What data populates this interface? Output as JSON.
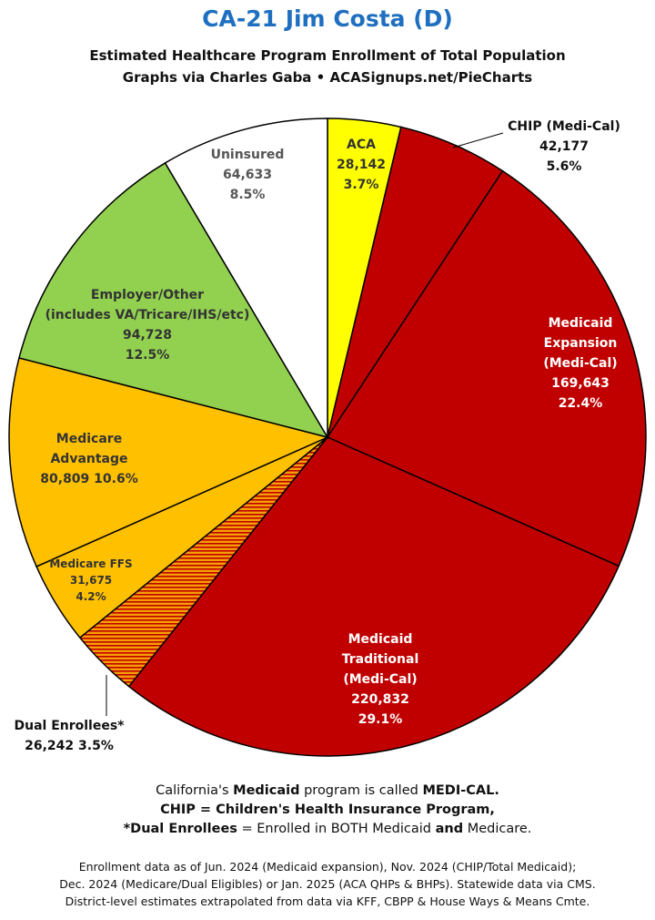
{
  "chart_data": {
    "type": "pie",
    "title": "CA-21 Jim Costa (D)",
    "subtitle_lines": [
      "Estimated Healthcare Program Enrollment of Total Population",
      "Graphs via Charles Gaba  •  ACASignups.net/PieCharts"
    ],
    "slices": [
      {
        "key": "aca",
        "label_lines": [
          "ACA"
        ],
        "value": 28142,
        "value_text": "28,142",
        "percent": "3.7%",
        "color": "#ffff00"
      },
      {
        "key": "chip",
        "label_lines": [
          "CHIP (Medi-Cal)"
        ],
        "value": 42177,
        "value_text": "42,177",
        "percent": "5.6%",
        "color": "#c00000"
      },
      {
        "key": "medicaid-expansion",
        "label_lines": [
          "Medicaid",
          "Expansion",
          "(Medi-Cal)"
        ],
        "value": 169643,
        "value_text": "169,643",
        "percent": "22.4%",
        "color": "#c00000"
      },
      {
        "key": "medicaid-traditional",
        "label_lines": [
          "Medicaid",
          "Traditional",
          "(Medi-Cal)"
        ],
        "value": 220832,
        "value_text": "220,832",
        "percent": "29.1%",
        "color": "#c00000"
      },
      {
        "key": "dual-enrollees",
        "label_lines": [
          "Dual Enrollees*"
        ],
        "value": 26242,
        "value_text": "26,242",
        "percent": "3.5%",
        "color": "#f5a000",
        "pattern": "hatched"
      },
      {
        "key": "medicare-ffs",
        "label_lines": [
          "Medicare FFS"
        ],
        "value": 31675,
        "value_text": "31,675",
        "percent": "4.2%",
        "color": "#ffc000"
      },
      {
        "key": "medicare-advantage",
        "label_lines": [
          "Medicare",
          "Advantage"
        ],
        "value": 80809,
        "value_text": "80,809",
        "percent": "10.6%",
        "color": "#ffc000"
      },
      {
        "key": "employer-other",
        "label_lines": [
          "Employer/Other",
          "(includes VA/Tricare/IHS/etc)"
        ],
        "value": 94728,
        "value_text": "94,728",
        "percent": "12.5%",
        "color": "#92d050"
      },
      {
        "key": "uninsured",
        "label_lines": [
          "Uninsured"
        ],
        "value": 64633,
        "value_text": "64,633",
        "percent": "8.5%",
        "color": "#ffffff"
      }
    ]
  },
  "notes": {
    "line1_pre": "California's ",
    "line1_b1": "Medicaid",
    "line1_mid": " program is called ",
    "line1_b2": "MEDI-CAL.",
    "line2": "CHIP = Children's Health Insurance Program,",
    "line3_b1": "*Dual Enrollees",
    "line3_mid": " = Enrolled in BOTH Medicaid ",
    "line3_b2": "and",
    "line3_post": " Medicare."
  },
  "footnotes": [
    "Enrollment data as of Jun. 2024 (Medicaid expansion), Nov. 2024 (CHIP/Total Medicaid);",
    "Dec. 2024 (Medicare/Dual Eligibles) or Jan. 2025 (ACA QHPs & BHPs). Statewide data via CMS.",
    "District-level estimates extrapolated from data via KFF, CBPP & House Ways & Means Cmte."
  ]
}
